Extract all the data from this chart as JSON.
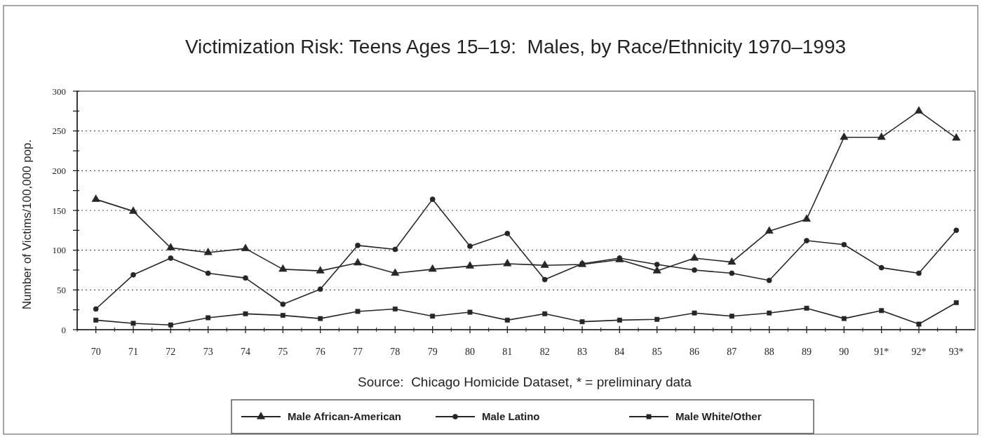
{
  "chart_data": {
    "type": "line",
    "title": "Victimization Risk: Teens Ages 15–19:  Males, by Race/Ethnicity 1970–1993",
    "ylabel": "Number of Victims/100,000 pop.",
    "annotations": [
      "Source:  Chicago Homicide Dataset, * = preliminary data"
    ],
    "categories": [
      "70",
      "71",
      "72",
      "73",
      "74",
      "75",
      "76",
      "77",
      "78",
      "79",
      "80",
      "81",
      "82",
      "83",
      "84",
      "85",
      "86",
      "87",
      "88",
      "89",
      "90",
      "91*",
      "92*",
      "93*"
    ],
    "series": [
      {
        "name": "Male African-American",
        "color": "#262626",
        "marker": "triangle",
        "values": [
          164,
          149,
          103,
          97,
          102,
          76,
          74,
          84,
          71,
          76,
          80,
          83,
          81,
          82,
          88,
          74,
          90,
          85,
          124,
          139,
          242,
          242,
          275,
          241
        ]
      },
      {
        "name": "Male Latino",
        "color": "#262626",
        "marker": "circle",
        "values": [
          26,
          69,
          90,
          71,
          65,
          32,
          51,
          106,
          101,
          164,
          105,
          121,
          63,
          83,
          90,
          82,
          75,
          71,
          62,
          112,
          107,
          78,
          71,
          125
        ]
      },
      {
        "name": "Male White/Other",
        "color": "#262626",
        "marker": "square",
        "values": [
          12,
          8,
          6,
          15,
          20,
          18,
          14,
          23,
          26,
          17,
          22,
          12,
          20,
          10,
          12,
          13,
          21,
          17,
          21,
          27,
          14,
          24,
          7,
          34
        ]
      }
    ],
    "ylim": [
      0,
      300
    ],
    "yticks": [
      0,
      {
        "value": 25,
        "label": null
      },
      50,
      {
        "value": 75,
        "label": null
      },
      100,
      {
        "value": 125,
        "label": null
      },
      150,
      {
        "value": 175,
        "label": null
      },
      200,
      {
        "value": 225,
        "label": null
      },
      250,
      {
        "value": 275,
        "label": null
      },
      300
    ],
    "grid": "y",
    "legend": "bottom"
  }
}
